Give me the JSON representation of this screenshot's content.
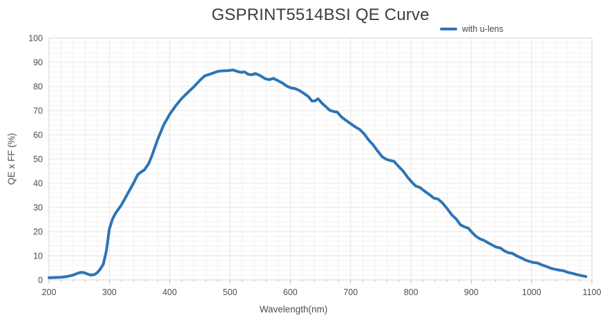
{
  "chart_data": {
    "type": "line",
    "title": "GSPRINT5514BSI QE Curve",
    "xlabel": "Wavelength(nm)",
    "ylabel": "QE x FF (%)",
    "xlim": [
      200,
      1100
    ],
    "ylim": [
      0,
      100
    ],
    "x_ticks": [
      200,
      300,
      400,
      500,
      600,
      700,
      800,
      900,
      1000,
      1100
    ],
    "y_ticks": [
      0,
      10,
      20,
      30,
      40,
      50,
      60,
      70,
      80,
      90,
      100
    ],
    "grid": true,
    "minor_grid": true,
    "legend_position": "top-right",
    "series": [
      {
        "name": "with u-lens",
        "color": "#2E74B5",
        "x": [
          200,
          210,
          220,
          230,
          240,
          248,
          253,
          258,
          265,
          270,
          275,
          280,
          285,
          290,
          295,
          300,
          305,
          310,
          320,
          330,
          340,
          347,
          352,
          358,
          365,
          370,
          380,
          390,
          400,
          410,
          420,
          430,
          440,
          450,
          458,
          465,
          470,
          478,
          485,
          495,
          505,
          512,
          518,
          524,
          530,
          536,
          542,
          550,
          558,
          565,
          572,
          580,
          588,
          595,
          602,
          608,
          615,
          622,
          630,
          636,
          641,
          646,
          652,
          658,
          665,
          672,
          678,
          685,
          692,
          700,
          708,
          715,
          722,
          730,
          737,
          745,
          752,
          758,
          765,
          772,
          780,
          787,
          795,
          802,
          808,
          815,
          822,
          830,
          838,
          845,
          852,
          860,
          868,
          875,
          882,
          888,
          895,
          902,
          908,
          915,
          920,
          928,
          935,
          941,
          948,
          955,
          962,
          968,
          975,
          982,
          990,
          997,
          1003,
          1010,
          1017,
          1024,
          1032,
          1040,
          1047,
          1053,
          1060,
          1068,
          1075,
          1082,
          1090
        ],
        "y": [
          0.9,
          1.0,
          1.1,
          1.4,
          2.0,
          2.8,
          3.1,
          3.0,
          2.3,
          2.0,
          2.2,
          3.0,
          4.5,
          6.5,
          12,
          21,
          25,
          27.5,
          31,
          35.5,
          40,
          43.5,
          44.5,
          45.5,
          48,
          51,
          58,
          64,
          68.5,
          72,
          75,
          77.5,
          79.8,
          82.5,
          84.3,
          84.9,
          85.3,
          86.1,
          86.4,
          86.5,
          86.8,
          86.2,
          85.8,
          86.0,
          85.0,
          84.8,
          85.3,
          84.5,
          83.2,
          82.8,
          83.3,
          82.3,
          81.2,
          80.0,
          79.3,
          79.1,
          78.3,
          77.2,
          75.8,
          73.9,
          74.0,
          74.9,
          73.2,
          71.8,
          70.2,
          69.6,
          69.3,
          67.3,
          66.0,
          64.6,
          63.2,
          62.2,
          60.5,
          57.8,
          55.9,
          53.2,
          51.0,
          50.0,
          49.4,
          49.0,
          46.8,
          45.0,
          42.3,
          40.3,
          38.8,
          38.2,
          36.8,
          35.4,
          33.8,
          33.4,
          31.9,
          29.5,
          26.8,
          25.2,
          22.8,
          22.0,
          21.4,
          19.4,
          18.0,
          16.9,
          16.5,
          15.3,
          14.4,
          13.6,
          13.2,
          12.0,
          11.2,
          11.0,
          10.0,
          9.2,
          8.2,
          7.6,
          7.2,
          7.0,
          6.2,
          5.6,
          4.8,
          4.3,
          4.0,
          3.8,
          3.1,
          2.7,
          2.2,
          1.8,
          1.4
        ]
      }
    ]
  },
  "colors": {
    "line": "#2E74B5",
    "title_text": "#3d3d3d",
    "tick_text": "#4d4d4d",
    "grid_major": "#e3e3e3",
    "grid_minor": "#f2f2f2",
    "plot_border": "#d6d6d6",
    "tick_mark": "#c4c4c4"
  }
}
